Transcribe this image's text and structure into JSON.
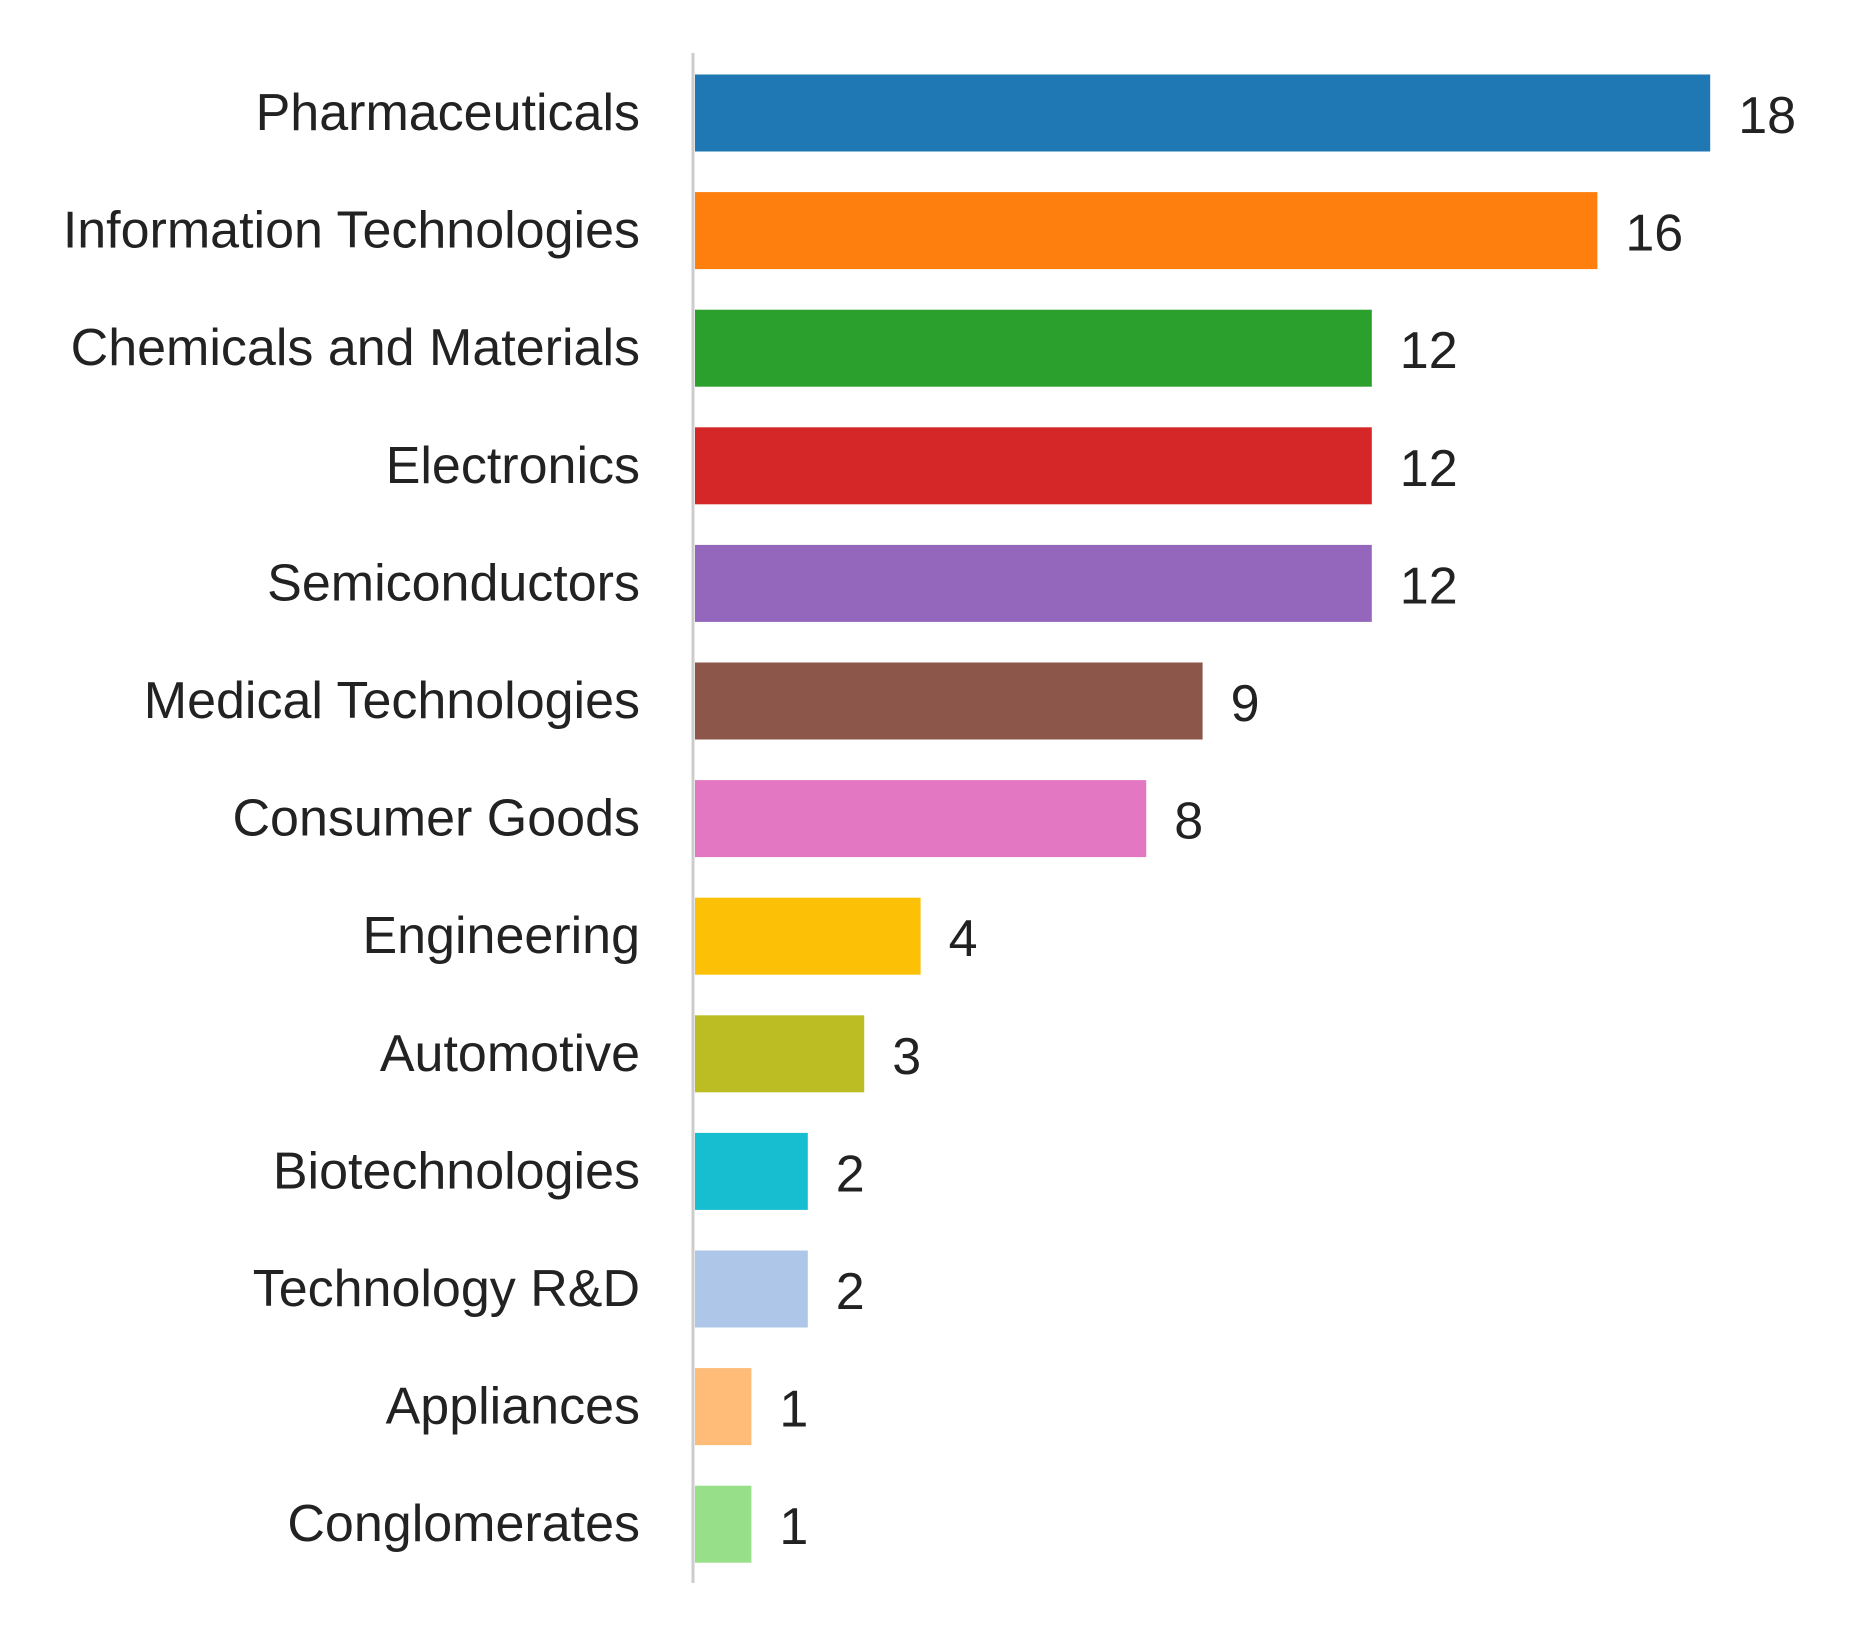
{
  "chart_data": {
    "type": "bar",
    "orientation": "horizontal",
    "title": "",
    "xlabel": "",
    "ylabel": "",
    "xlim": [
      0,
      18
    ],
    "grid": false,
    "legend": "none",
    "data_labels": true,
    "categories": [
      "Pharmaceuticals",
      "Information Technologies",
      "Chemicals and Materials",
      "Electronics",
      "Semiconductors",
      "Medical Technologies",
      "Consumer Goods",
      "Engineering",
      "Automotive",
      "Biotechnologies",
      "Technology R&D",
      "Appliances",
      "Conglomerates"
    ],
    "values": [
      18,
      16,
      12,
      12,
      12,
      9,
      8,
      4,
      3,
      2,
      2,
      1,
      1
    ],
    "colors": [
      "#1f77b4",
      "#ff7f0e",
      "#2ca02c",
      "#d62728",
      "#9467bd",
      "#8c564b",
      "#e377c2",
      "#fcc006",
      "#bcbd22",
      "#17becf",
      "#aec7e8",
      "#ffbb78",
      "#98df8a"
    ],
    "axis_line_color": "#cccccc"
  }
}
